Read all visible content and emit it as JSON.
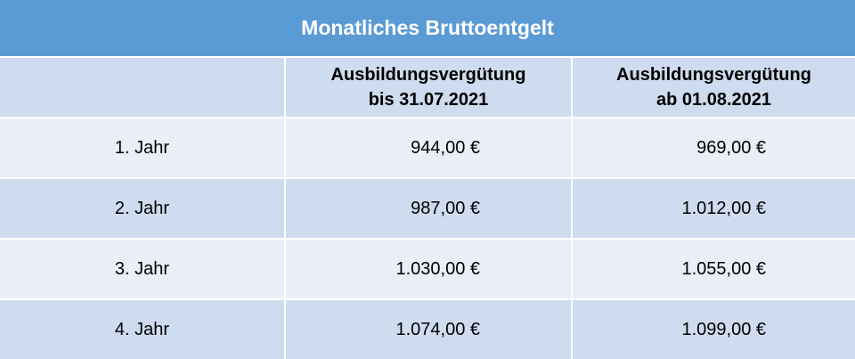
{
  "title": "Monatliches Bruttoentgelt",
  "header": [
    [
      "Ausbildungsvergütung",
      "bis 31.07.2021"
    ],
    [
      "Ausbildungsvergütung",
      "ab 01.08.2021"
    ]
  ],
  "rows": [
    [
      "1. Jahr",
      "944,00 €",
      "969,00 €"
    ],
    [
      "2. Jahr",
      "987,00 €",
      "1.012,00 €"
    ],
    [
      "3. Jahr",
      "1.030,00 €",
      "1.055,00 €"
    ],
    [
      "4. Jahr",
      "1.074,00 €",
      "1.099,00 €"
    ]
  ]
}
